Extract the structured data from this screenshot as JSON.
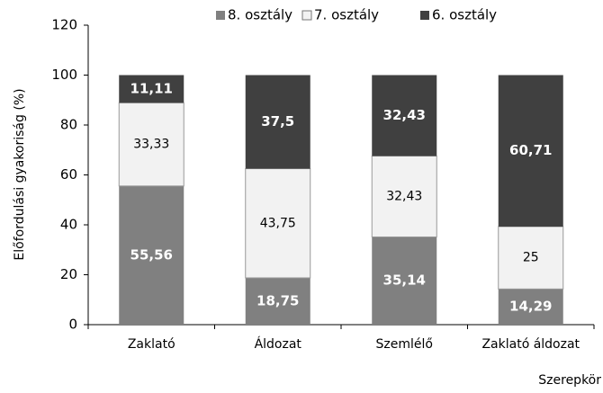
{
  "chart_data": {
    "type": "stacked_bar",
    "categories": [
      "Zaklató",
      "Áldozat",
      "Szemlélő",
      "Zaklató áldozat"
    ],
    "series": [
      {
        "name": "8. osztály",
        "color": "#808080",
        "values": [
          55.56,
          18.75,
          35.14,
          14.29
        ],
        "value_labels": [
          "55,56",
          "18,75",
          "35,14",
          "14,29"
        ]
      },
      {
        "name": "7. osztály",
        "color": "#f2f2f2",
        "values": [
          33.33,
          43.75,
          32.43,
          25
        ],
        "value_labels": [
          "33,33",
          "43,75",
          "32,43",
          "25"
        ]
      },
      {
        "name": "6. osztály",
        "color": "#404040",
        "values": [
          11.11,
          37.5,
          32.43,
          60.71
        ],
        "value_labels": [
          "11,11",
          "37,5",
          "32,43",
          "60,71"
        ]
      }
    ],
    "y_label": "Előfordulási gyakoriság (%)",
    "x_label": "Szerepkör",
    "ylim": [
      0,
      120
    ],
    "yticks": [
      0,
      20,
      40,
      60,
      80,
      100,
      120
    ],
    "legend": "top"
  }
}
